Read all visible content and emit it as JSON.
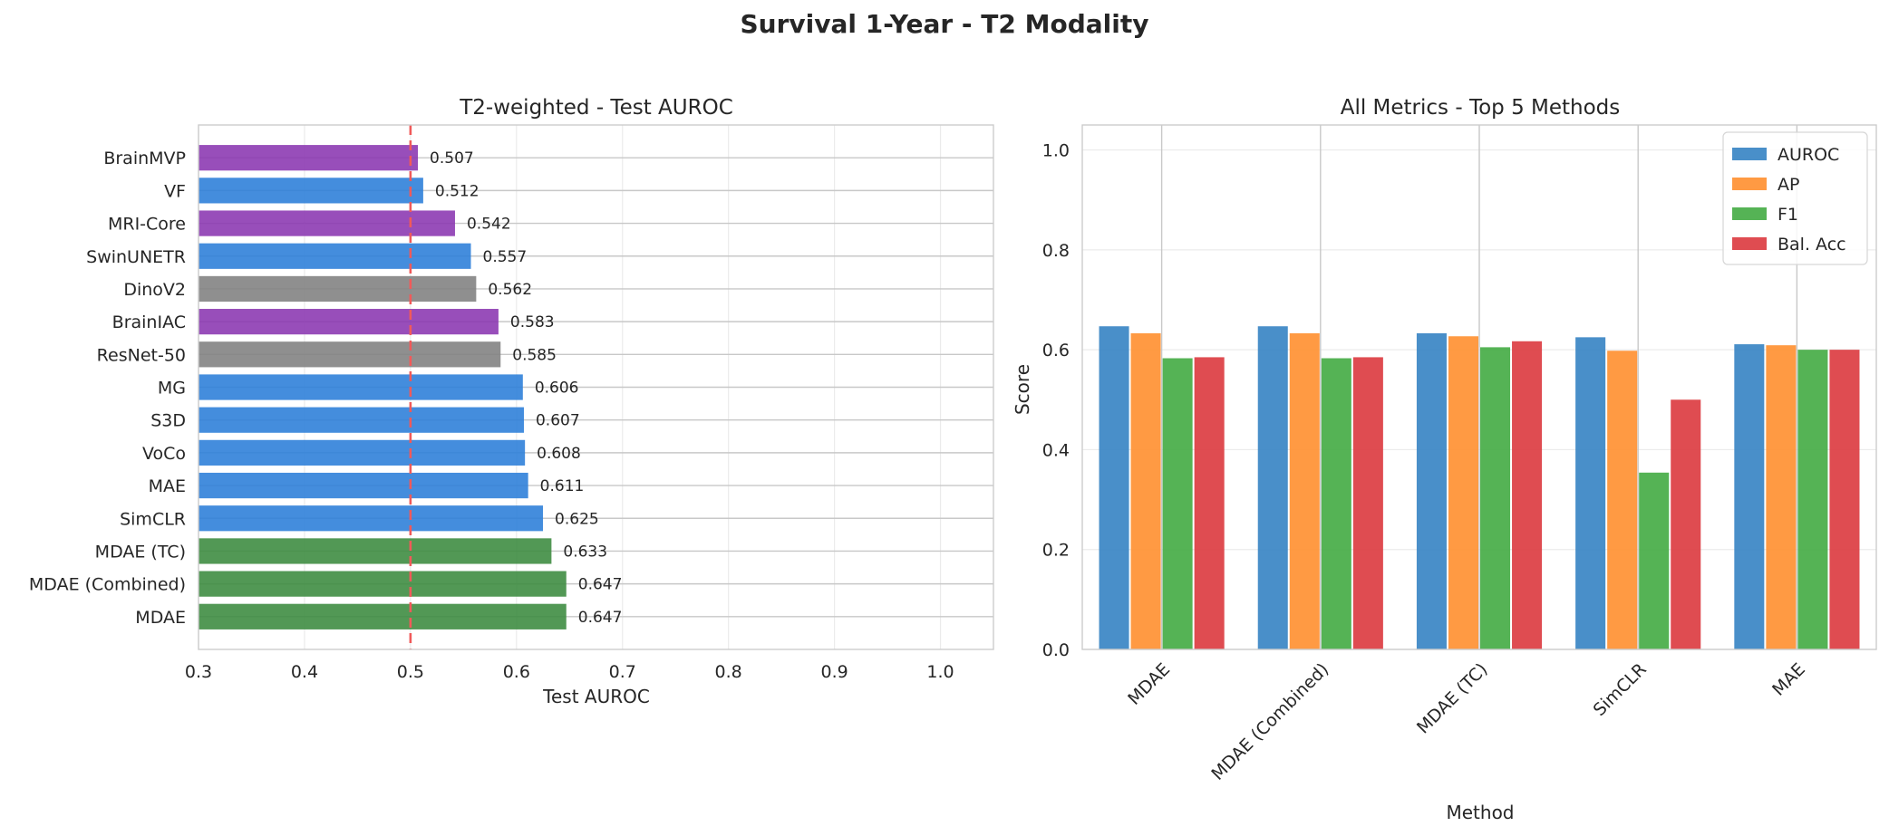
{
  "figure_title": "Survival 1-Year - T2 Modality",
  "chart_data": [
    {
      "type": "bar",
      "orientation": "horizontal",
      "title": "T2-weighted - Test AUROC",
      "xlabel": "Test AUROC",
      "ylabel": "",
      "xlim": [
        0.3,
        1.05
      ],
      "xticks": [
        "0.3",
        "0.4",
        "0.5",
        "0.6",
        "0.7",
        "0.8",
        "0.9",
        "1.0"
      ],
      "reference_line": 0.5,
      "grid": true,
      "categories": [
        "MDAE",
        "MDAE (Combined)",
        "MDAE (TC)",
        "SimCLR",
        "MAE",
        "VoCo",
        "S3D",
        "MG",
        "ResNet-50",
        "BrainIAC",
        "DinoV2",
        "SwinUNETR",
        "MRI-Core",
        "VF",
        "BrainMVP"
      ],
      "values": [
        0.647,
        0.647,
        0.633,
        0.625,
        0.611,
        0.608,
        0.607,
        0.606,
        0.585,
        0.583,
        0.562,
        0.557,
        0.542,
        0.512,
        0.507
      ],
      "value_labels": [
        "0.647",
        "0.647",
        "0.633",
        "0.625",
        "0.611",
        "0.608",
        "0.607",
        "0.606",
        "0.585",
        "0.583",
        "0.562",
        "0.557",
        "0.542",
        "0.512",
        "0.507"
      ],
      "colors": [
        "#3a8a3e",
        "#3a8a3e",
        "#3a8a3e",
        "#2a7dd8",
        "#2a7dd8",
        "#2a7dd8",
        "#2a7dd8",
        "#2a7dd8",
        "#808080",
        "#8a35b0",
        "#808080",
        "#2a7dd8",
        "#8a35b0",
        "#2a7dd8",
        "#8a35b0"
      ]
    },
    {
      "type": "bar",
      "title": "All Metrics - Top 5 Methods",
      "xlabel": "Method",
      "ylabel": "Score",
      "ylim": [
        0,
        1.05
      ],
      "yticks": [
        "0.0",
        "0.2",
        "0.4",
        "0.6",
        "0.8",
        "1.0"
      ],
      "grid": true,
      "legend": "top-right",
      "categories": [
        "MDAE",
        "MDAE (Combined)",
        "MDAE (TC)",
        "SimCLR",
        "MAE"
      ],
      "series": [
        {
          "name": "AUROC",
          "color": "#3a86c4",
          "values": [
            0.647,
            0.647,
            0.633,
            0.625,
            0.611
          ]
        },
        {
          "name": "AP",
          "color": "#ff9133",
          "values": [
            0.633,
            0.633,
            0.627,
            0.598,
            0.609
          ]
        },
        {
          "name": "F1",
          "color": "#47ad47",
          "values": [
            0.583,
            0.583,
            0.605,
            0.354,
            0.6
          ]
        },
        {
          "name": "Bal. Acc",
          "color": "#dc3d42",
          "values": [
            0.585,
            0.585,
            0.617,
            0.5,
            0.6
          ]
        }
      ]
    }
  ]
}
